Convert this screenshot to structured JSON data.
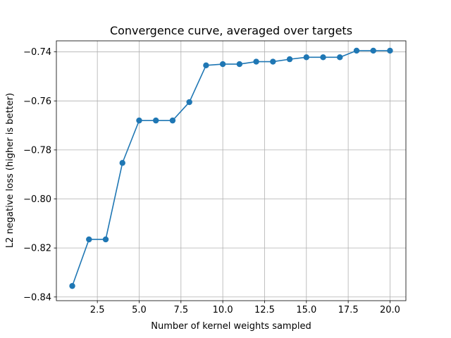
{
  "chart_data": {
    "type": "line",
    "title": "Convergence curve, averaged over targets",
    "xlabel": "Number of kernel weights sampled",
    "ylabel": "L2 negative loss (higher is better)",
    "xlim": [
      0.05,
      20.95
    ],
    "ylim": [
      -0.8415,
      -0.7355
    ],
    "grid": true,
    "x_ticks": [
      2.5,
      5.0,
      7.5,
      10.0,
      12.5,
      15.0,
      17.5,
      20.0
    ],
    "x_tick_labels": [
      "2.5",
      "5.0",
      "7.5",
      "10.0",
      "12.5",
      "15.0",
      "17.5",
      "20.0"
    ],
    "y_ticks": [
      -0.84,
      -0.82,
      -0.8,
      -0.78,
      -0.76,
      -0.74
    ],
    "y_tick_labels": [
      "−0.84",
      "−0.82",
      "−0.80",
      "−0.78",
      "−0.76",
      "−0.74"
    ],
    "line_color": "#1f77b4",
    "series": [
      {
        "x": [
          1,
          2,
          3,
          4,
          5,
          6,
          7,
          8,
          9,
          10,
          11,
          12,
          13,
          14,
          15,
          16,
          17,
          18,
          19,
          20
        ],
        "values": [
          -0.8355,
          -0.8165,
          -0.8165,
          -0.7853,
          -0.768,
          -0.768,
          -0.768,
          -0.7605,
          -0.7455,
          -0.745,
          -0.745,
          -0.744,
          -0.744,
          -0.743,
          -0.7422,
          -0.7422,
          -0.7422,
          -0.7395,
          -0.7395,
          -0.7395
        ]
      }
    ]
  }
}
